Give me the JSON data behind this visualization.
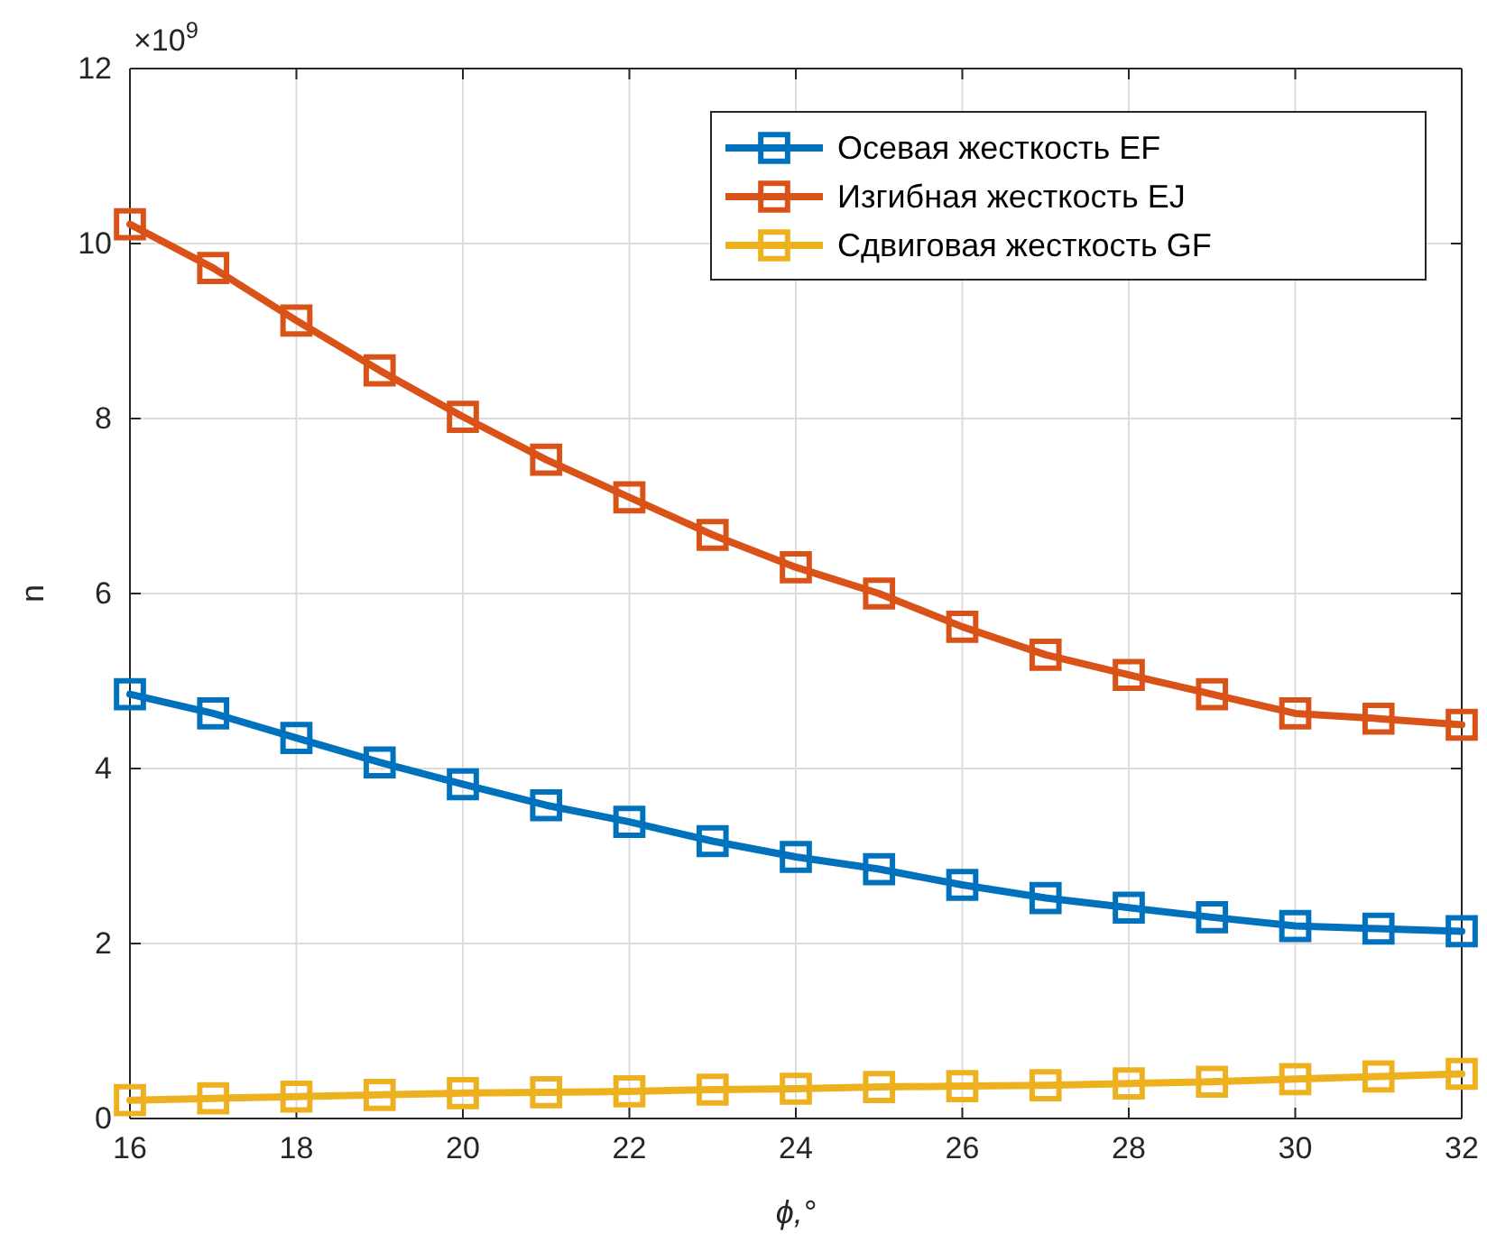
{
  "chart_data": {
    "type": "line",
    "xlabel": "ϕ,°",
    "ylabel": "n",
    "annotations": [
      "×10$^{9}$"
    ],
    "x": [
      16,
      17,
      18,
      19,
      20,
      21,
      22,
      23,
      24,
      25,
      26,
      27,
      28,
      29,
      30,
      31,
      32
    ],
    "xlim": [
      16,
      32
    ],
    "xticks": [
      16,
      18,
      20,
      22,
      24,
      26,
      28,
      30,
      32
    ],
    "ylim": [
      0,
      12
    ],
    "yticks": [
      0,
      2,
      4,
      6,
      8,
      10,
      12
    ],
    "grid": true,
    "legend": "top right",
    "marker": "square",
    "line_style": "solid",
    "series": [
      {
        "name": "Осевая жесткость EF",
        "color": "#0072bd",
        "values": [
          4.85,
          4.63,
          4.35,
          4.07,
          3.82,
          3.58,
          3.39,
          3.17,
          2.99,
          2.85,
          2.67,
          2.52,
          2.41,
          2.3,
          2.2,
          2.17,
          2.14
        ]
      },
      {
        "name": "Изгибная жесткость EJ",
        "color": "#d95319",
        "values": [
          10.22,
          9.72,
          9.12,
          8.55,
          8.02,
          7.53,
          7.1,
          6.67,
          6.3,
          6.0,
          5.62,
          5.3,
          5.07,
          4.85,
          4.63,
          4.57,
          4.5
        ]
      },
      {
        "name": "Сдвиговая жесткость GF",
        "color": "#edb120",
        "values": [
          0.21,
          0.23,
          0.25,
          0.27,
          0.29,
          0.3,
          0.31,
          0.33,
          0.34,
          0.36,
          0.37,
          0.38,
          0.4,
          0.42,
          0.45,
          0.48,
          0.51
        ]
      }
    ]
  }
}
